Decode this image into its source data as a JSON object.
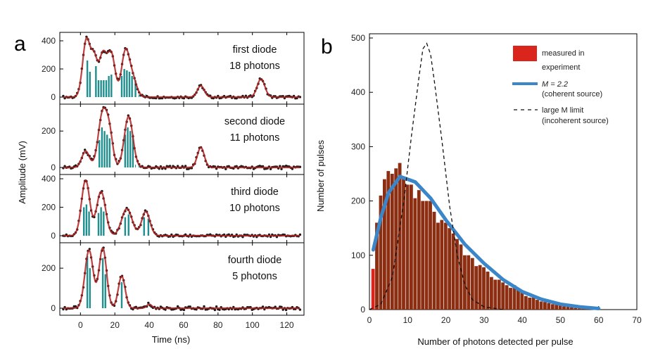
{
  "chart_data": [
    {
      "id": "a",
      "panel_label": "a",
      "type": "line",
      "xlabel": "Time  (ns)",
      "ylabel": "Amplitude  (mV)",
      "xlim": [
        -12,
        130
      ],
      "x_ticks": [
        0,
        20,
        40,
        60,
        80,
        100,
        120
      ],
      "colors": {
        "data_points": "#1a1a1a",
        "fit": "#b02020",
        "photon_bars": "#1f8f8f"
      },
      "subpanels": [
        {
          "label_line1": "first diode",
          "label_line2": "18 photons",
          "ylim": [
            0,
            450
          ],
          "y_ticks": [
            0,
            200,
            400
          ],
          "peaks": [
            [
              3.5,
              410,
              2.2
            ],
            [
              8,
              250,
              1.8
            ],
            [
              13,
              300,
              2.2
            ],
            [
              18,
              300,
              2.2
            ],
            [
              26,
              300,
              2.2
            ],
            [
              30,
              140,
              2.5
            ],
            [
              70,
              80,
              2
            ],
            [
              105,
              130,
              2.2
            ]
          ],
          "photon_bars": [
            [
              4,
              260
            ],
            [
              5.5,
              180
            ],
            [
              9,
              220
            ],
            [
              10.5,
              120
            ],
            [
              12,
              120
            ],
            [
              13.5,
              120
            ],
            [
              15,
              120
            ],
            [
              16.5,
              150
            ],
            [
              18,
              160
            ],
            [
              24,
              150
            ],
            [
              25.5,
              200
            ],
            [
              27,
              190
            ],
            [
              28.5,
              180
            ],
            [
              30,
              150
            ],
            [
              32,
              120
            ],
            [
              34,
              0
            ],
            [
              36,
              0
            ],
            [
              38,
              0
            ]
          ]
        },
        {
          "label_line1": "second diode",
          "label_line2": "11 photons",
          "ylim": [
            0,
            340
          ],
          "y_ticks": [
            0,
            200
          ],
          "peaks": [
            [
              3,
              90,
              2.2
            ],
            [
              13,
              300,
              2.6
            ],
            [
              17,
              150,
              2
            ],
            [
              28,
              280,
              2.5
            ],
            [
              70,
              110,
              2
            ]
          ],
          "photon_bars": [
            [
              11,
              150
            ],
            [
              12.5,
              220
            ],
            [
              14,
              200
            ],
            [
              15.5,
              180
            ],
            [
              17,
              160
            ],
            [
              26,
              180
            ],
            [
              27.5,
              220
            ],
            [
              29,
              200
            ],
            [
              30.5,
              180
            ],
            [
              32,
              0
            ],
            [
              34,
              0
            ]
          ]
        },
        {
          "label_line1": "third diode",
          "label_line2": "10 photons",
          "ylim": [
            0,
            420
          ],
          "y_ticks": [
            0,
            200,
            400
          ],
          "peaks": [
            [
              3,
              390,
              2.4
            ],
            [
              12,
              310,
              2.6
            ],
            [
              27,
              190,
              3
            ],
            [
              38,
              170,
              2.4
            ]
          ],
          "photon_bars": [
            [
              2,
              200
            ],
            [
              3.5,
              220
            ],
            [
              5,
              170
            ],
            [
              10.5,
              160
            ],
            [
              12,
              200
            ],
            [
              13.5,
              170
            ],
            [
              26,
              130
            ],
            [
              28,
              150
            ],
            [
              37,
              130
            ],
            [
              39.5,
              120
            ]
          ]
        },
        {
          "label_line1": "fourth diode",
          "label_line2": "5 photons",
          "ylim": [
            0,
            320
          ],
          "y_ticks": [
            0,
            200
          ],
          "peaks": [
            [
              5,
              290,
              2.4
            ],
            [
              13,
              300,
              2.2
            ],
            [
              24,
              160,
              2
            ],
            [
              40,
              20,
              1.5
            ]
          ],
          "photon_bars": [
            [
              4,
              260
            ],
            [
              5.5,
              200
            ],
            [
              13,
              250
            ],
            [
              14.5,
              170
            ],
            [
              24,
              130
            ]
          ]
        }
      ]
    },
    {
      "id": "b",
      "panel_label": "b",
      "type": "bar",
      "xlabel": "Number of photons detected per pulse",
      "ylabel": "Number of pulses",
      "xlim": [
        0,
        70
      ],
      "ylim": [
        0,
        500
      ],
      "x_ticks": [
        0,
        10,
        20,
        30,
        40,
        50,
        60,
        70
      ],
      "x_tick_labels": [
        "0",
        "10",
        "20",
        "30",
        "40",
        "50",
        "60",
        "70"
      ],
      "y_ticks": [
        0,
        100,
        200,
        300,
        400,
        500
      ],
      "histogram": {
        "x": [
          1,
          2,
          3,
          4,
          5,
          6,
          7,
          8,
          9,
          10,
          11,
          12,
          13,
          14,
          15,
          16,
          17,
          18,
          19,
          20,
          21,
          22,
          23,
          24,
          25,
          26,
          27,
          28,
          29,
          30,
          31,
          32,
          33,
          34,
          35,
          36,
          37,
          38,
          39,
          40,
          41,
          42,
          43,
          44,
          45,
          46,
          47,
          48,
          49,
          50,
          51,
          52,
          53,
          54,
          55,
          56,
          57,
          58,
          59,
          60
        ],
        "values": [
          75,
          160,
          210,
          240,
          255,
          250,
          260,
          270,
          240,
          230,
          230,
          205,
          220,
          200,
          200,
          200,
          180,
          160,
          165,
          160,
          150,
          140,
          130,
          120,
          100,
          100,
          95,
          80,
          82,
          78,
          70,
          60,
          55,
          55,
          50,
          45,
          40,
          45,
          38,
          35,
          25,
          22,
          22,
          18,
          15,
          14,
          12,
          10,
          9,
          8,
          6,
          5,
          4,
          3,
          2,
          2,
          1,
          1,
          1,
          0
        ]
      },
      "coherent_fit": {
        "x": [
          1,
          3,
          5,
          8,
          12,
          16,
          20,
          25,
          30,
          35,
          40,
          45,
          50,
          55,
          60
        ],
        "y": [
          110,
          170,
          215,
          245,
          235,
          205,
          165,
          120,
          85,
          55,
          33,
          19,
          10,
          5,
          2
        ]
      },
      "incoherent_limit": {
        "x": [
          0,
          3,
          6,
          9,
          11,
          13,
          14,
          15,
          16,
          17,
          19,
          21,
          23,
          25,
          27,
          30,
          35
        ],
        "y": [
          0,
          10,
          60,
          200,
          320,
          430,
          480,
          490,
          470,
          420,
          310,
          190,
          100,
          45,
          18,
          5,
          0
        ]
      },
      "legend": {
        "placement": "top-right",
        "entries": [
          {
            "line1": "measured in",
            "line2": "experiment"
          },
          {
            "line1": "M = 2.2",
            "line2": "(coherent source)"
          },
          {
            "line1": "large M  limit",
            "line2": "(incoherent source)"
          }
        ]
      },
      "colors": {
        "bars": "#8b2e12",
        "bar_legend": "#d9251c",
        "fit_line": "#3a86c8",
        "limit_line": "#111111"
      }
    }
  ]
}
